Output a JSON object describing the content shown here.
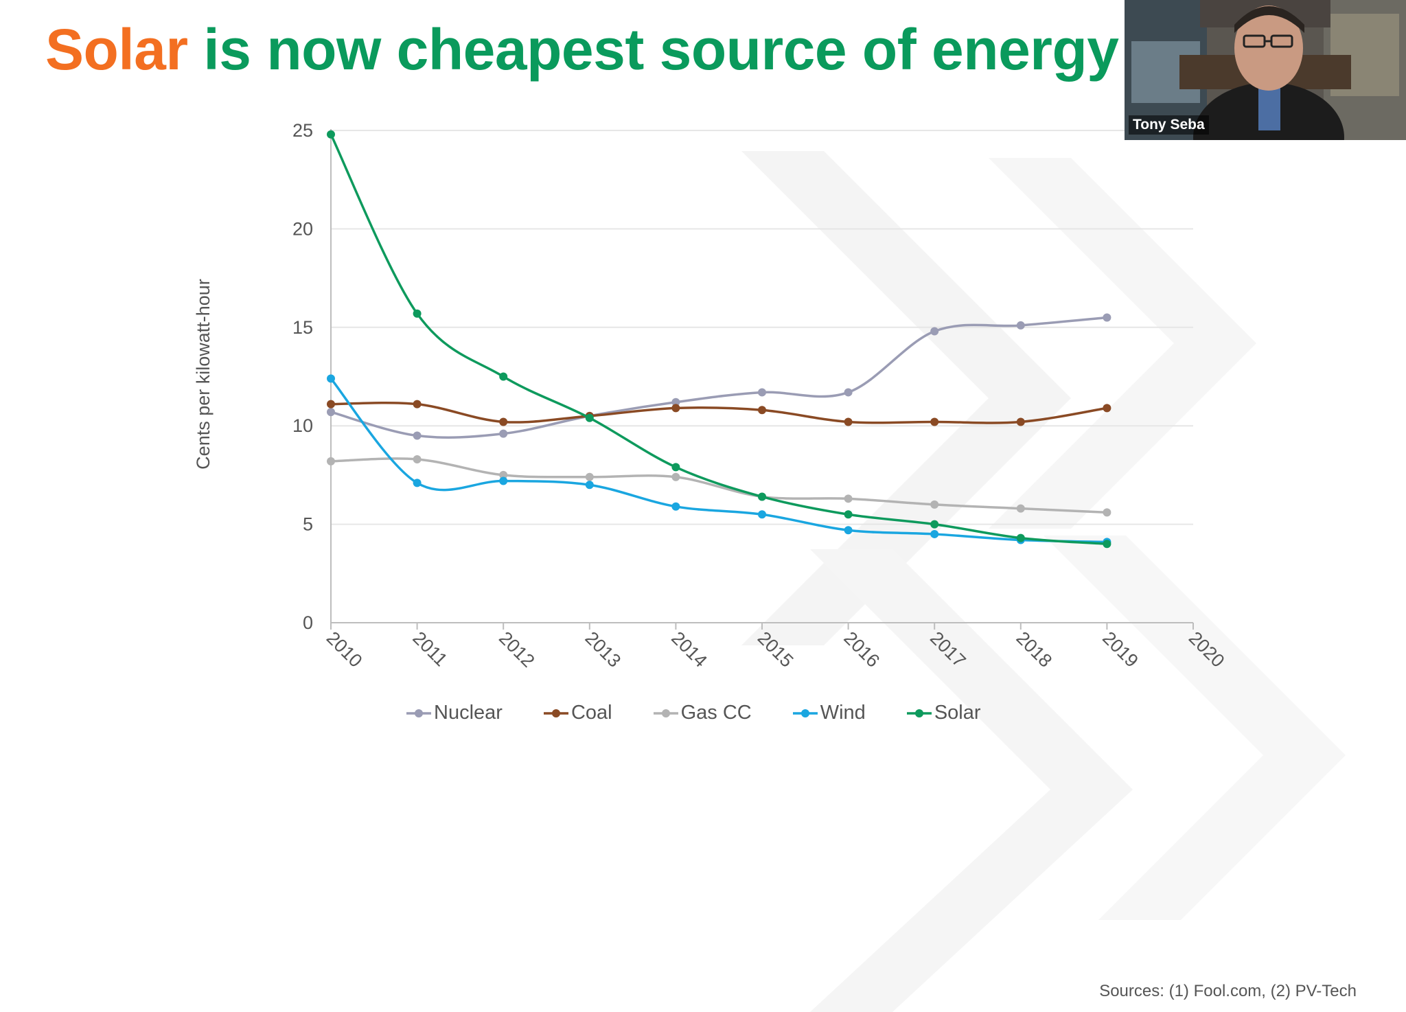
{
  "slide": {
    "title_highlight": "Solar",
    "title_rest": " is now cheapest source of energy – e",
    "sources": "Sources: (1) Fool.com, (2) PV-Tech"
  },
  "video": {
    "participant_name": "Tony Seba"
  },
  "chart_data": {
    "type": "line",
    "title": "",
    "xlabel": "",
    "ylabel": "Cents per kilowatt-hour",
    "x": [
      2010,
      2011,
      2012,
      2013,
      2014,
      2015,
      2016,
      2017,
      2018,
      2019
    ],
    "xlim": [
      2010,
      2020
    ],
    "ylim": [
      0,
      25
    ],
    "yticks": [
      0,
      5,
      10,
      15,
      20,
      25
    ],
    "xticks": [
      "2010",
      "2011",
      "2012",
      "2013",
      "2014",
      "2015",
      "2016",
      "2017",
      "2018",
      "2019",
      "2020"
    ],
    "grid": true,
    "legend_position": "bottom",
    "smooth": true,
    "series": [
      {
        "name": "Nuclear",
        "color": "#9a9cb4",
        "values": [
          10.7,
          9.5,
          9.6,
          10.5,
          11.2,
          11.7,
          11.7,
          14.8,
          15.1,
          15.5
        ]
      },
      {
        "name": "Coal",
        "color": "#8a4a24",
        "values": [
          11.1,
          11.1,
          10.2,
          10.5,
          10.9,
          10.8,
          10.2,
          10.2,
          10.2,
          10.9
        ]
      },
      {
        "name": "Gas CC",
        "color": "#b3b3b3",
        "values": [
          8.2,
          8.3,
          7.5,
          7.4,
          7.4,
          6.4,
          6.3,
          6.0,
          5.8,
          5.6
        ]
      },
      {
        "name": "Wind",
        "color": "#1aa6e0",
        "values": [
          12.4,
          7.1,
          7.2,
          7.0,
          5.9,
          5.5,
          4.7,
          4.5,
          4.2,
          4.1
        ]
      },
      {
        "name": "Solar",
        "color": "#0e9a5d",
        "values": [
          24.8,
          15.7,
          12.5,
          10.4,
          7.9,
          6.4,
          5.5,
          5.0,
          4.3,
          4.0
        ]
      }
    ]
  }
}
